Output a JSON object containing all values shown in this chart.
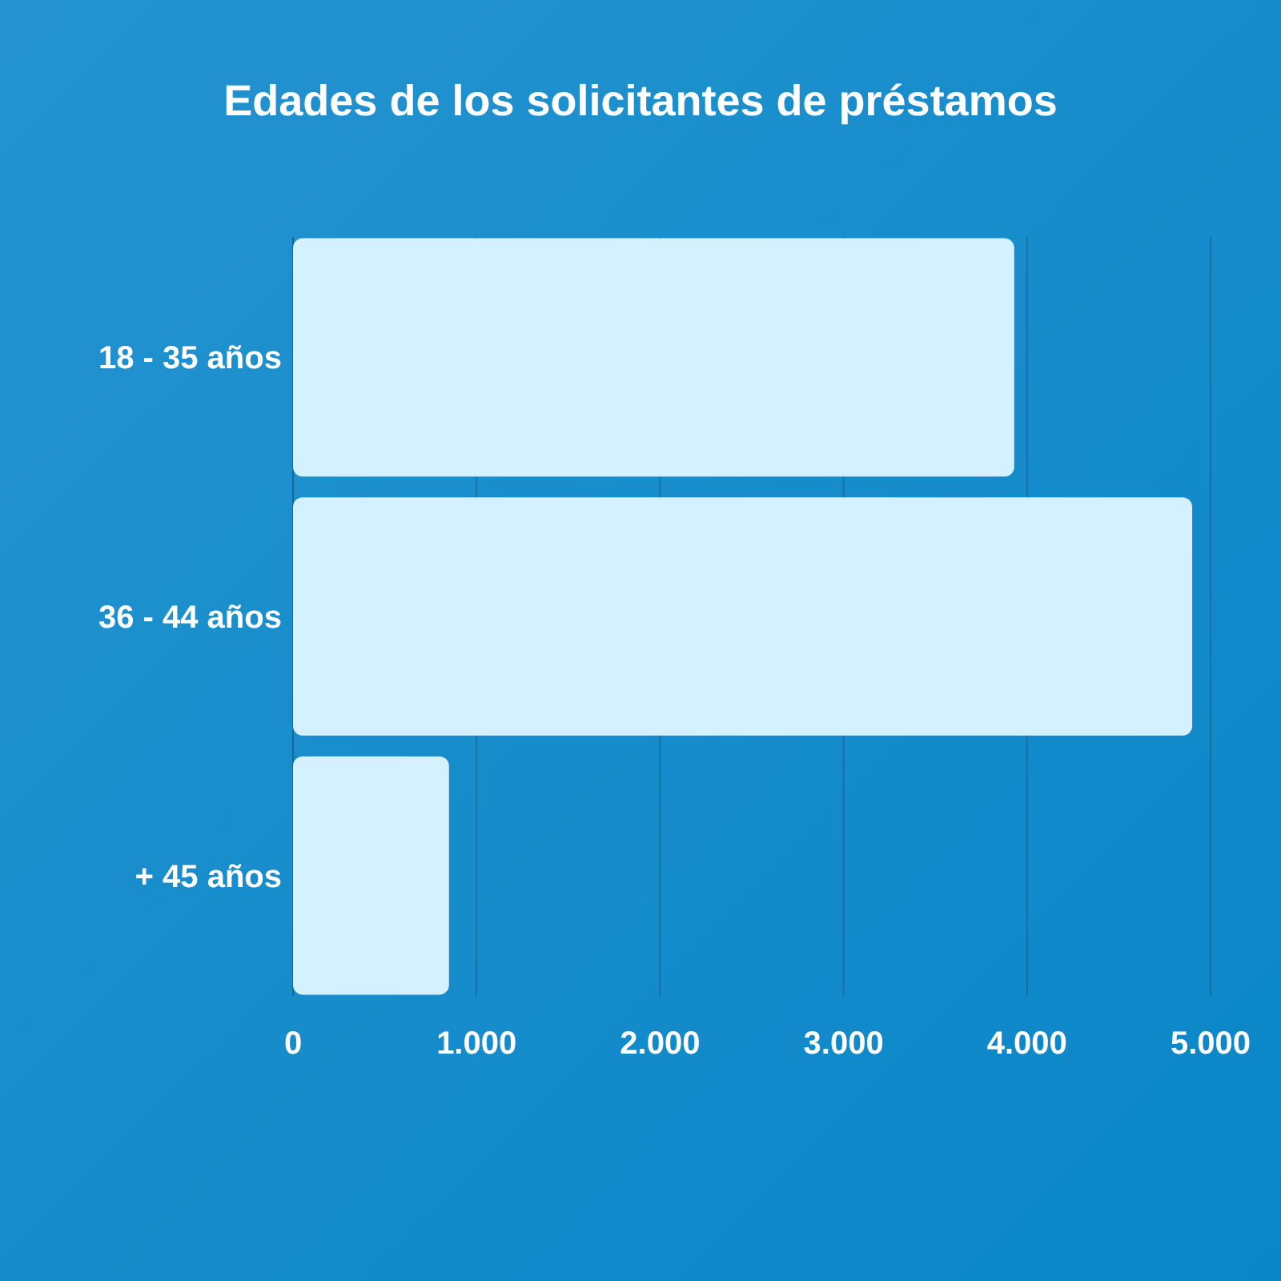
{
  "chart_data": {
    "type": "bar",
    "orientation": "horizontal",
    "title": "Edades de los solicitantes de préstamos",
    "categories": [
      "18 - 35 años",
      "36 - 44 años",
      "+ 45 años"
    ],
    "values": [
      3930,
      4900,
      850
    ],
    "color": "#d3f1ff",
    "xlim": [
      0,
      5000
    ],
    "xticks": [
      0,
      {
        "value": 1000,
        "label": "1.000"
      },
      {
        "value": 2000,
        "label": "2.000"
      },
      {
        "value": 3000,
        "label": "3.000"
      },
      {
        "value": 4000,
        "label": "4.000"
      },
      {
        "value": 5000,
        "label": "5.000"
      }
    ],
    "grid": "x"
  }
}
